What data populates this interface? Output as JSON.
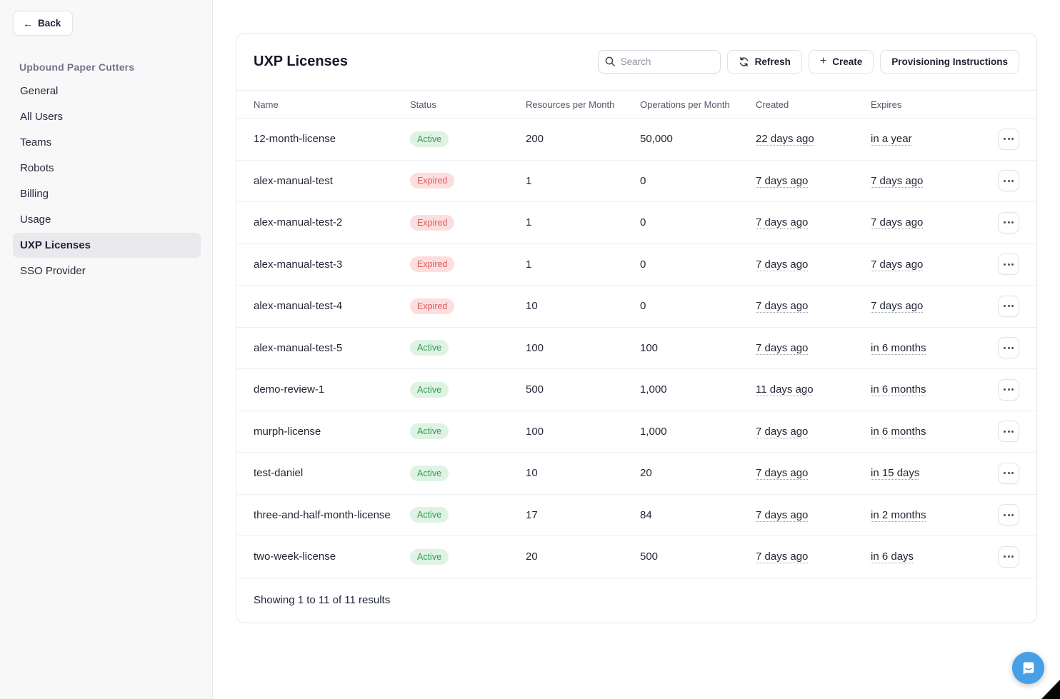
{
  "sidebar": {
    "back_button": {
      "icon": "←",
      "label": "Back"
    },
    "org_name": "Upbound Paper Cutters",
    "items": [
      {
        "label": "General",
        "selected": false
      },
      {
        "label": "All Users",
        "selected": false
      },
      {
        "label": "Teams",
        "selected": false
      },
      {
        "label": "Robots",
        "selected": false
      },
      {
        "label": "Billing",
        "selected": false
      },
      {
        "label": "Usage",
        "selected": false
      },
      {
        "label": "UXP Licenses",
        "selected": true
      },
      {
        "label": "SSO Provider",
        "selected": false
      }
    ]
  },
  "main": {
    "title": "UXP Licenses",
    "search_placeholder": "Search",
    "refresh_label": "Refresh",
    "create_label": "Create",
    "create_icon": "+",
    "provisioning_label": "Provisioning Instructions",
    "table": {
      "columns": [
        "Name",
        "Status",
        "Resources per Month",
        "Operations per Month",
        "Created",
        "Expires"
      ],
      "rows": [
        {
          "name": "12-month-license",
          "status": "Active",
          "resources": "200",
          "operations": "50,000",
          "created": "22 days ago",
          "expires": "in a year"
        },
        {
          "name": "alex-manual-test",
          "status": "Expired",
          "resources": "1",
          "operations": "0",
          "created": "7 days ago",
          "expires": "7 days ago"
        },
        {
          "name": "alex-manual-test-2",
          "status": "Expired",
          "resources": "1",
          "operations": "0",
          "created": "7 days ago",
          "expires": "7 days ago"
        },
        {
          "name": "alex-manual-test-3",
          "status": "Expired",
          "resources": "1",
          "operations": "0",
          "created": "7 days ago",
          "expires": "7 days ago"
        },
        {
          "name": "alex-manual-test-4",
          "status": "Expired",
          "resources": "10",
          "operations": "0",
          "created": "7 days ago",
          "expires": "7 days ago"
        },
        {
          "name": "alex-manual-test-5",
          "status": "Active",
          "resources": "100",
          "operations": "100",
          "created": "7 days ago",
          "expires": "in 6 months"
        },
        {
          "name": "demo-review-1",
          "status": "Active",
          "resources": "500",
          "operations": "1,000",
          "created": "11 days ago",
          "expires": "in 6 months"
        },
        {
          "name": "murph-license",
          "status": "Active",
          "resources": "100",
          "operations": "1,000",
          "created": "7 days ago",
          "expires": "in 6 months"
        },
        {
          "name": "test-daniel",
          "status": "Active",
          "resources": "10",
          "operations": "20",
          "created": "7 days ago",
          "expires": "in 15 days"
        },
        {
          "name": "three-and-half-month-license",
          "status": "Active",
          "resources": "17",
          "operations": "84",
          "created": "7 days ago",
          "expires": "in 2 months"
        },
        {
          "name": "two-week-license",
          "status": "Active",
          "resources": "20",
          "operations": "500",
          "created": "7 days ago",
          "expires": "in 6 days"
        }
      ],
      "summary": "Showing 1 to 11 of 11 results"
    }
  },
  "status_colors": {
    "Active": {
      "bg": "#dff2e3",
      "text": "#2e9e52"
    },
    "Expired": {
      "bg": "#fcdede",
      "text": "#df5b5b"
    }
  },
  "chat": {
    "launcher_color": "#47a0e3",
    "icon": "chat-bubble-icon"
  }
}
